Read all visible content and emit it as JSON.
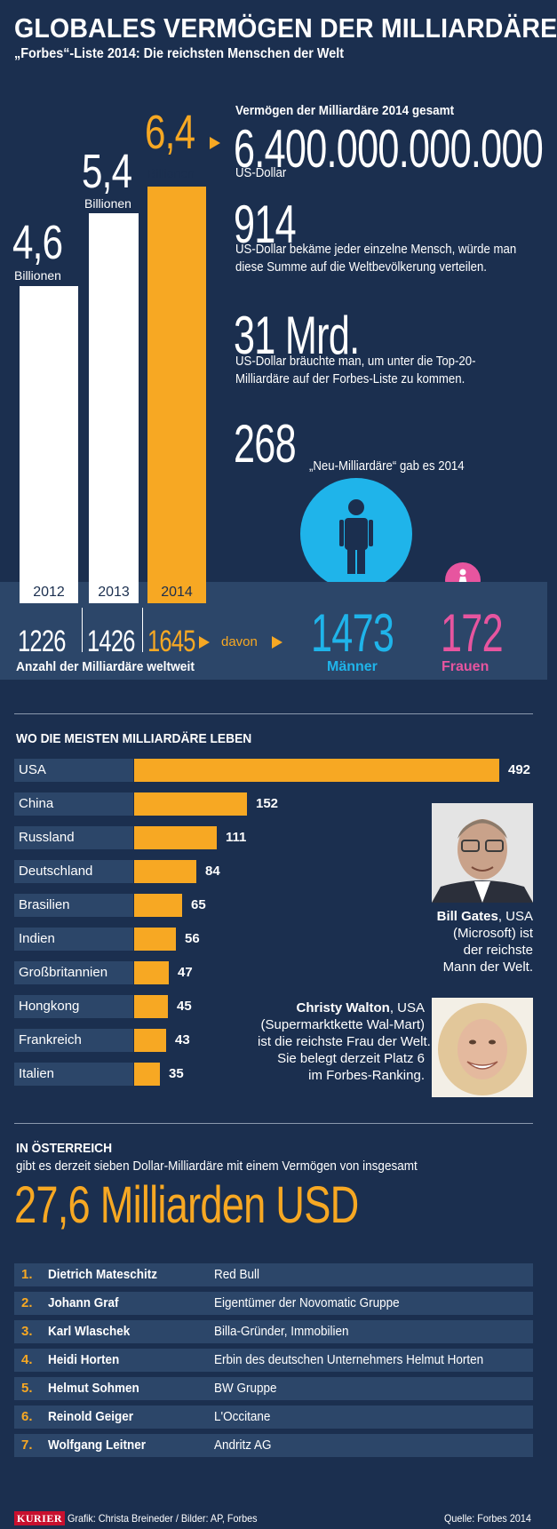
{
  "header": {
    "title": "GLOBALES VERMÖGEN DER MILLIARDÄRE",
    "subtitle": "„Forbes“-Liste 2014: Die reichsten Menschen der Welt"
  },
  "colors": {
    "background": "#1b2f4f",
    "accent": "#f7a823",
    "men": "#1fb4ea",
    "women": "#e7559f",
    "row": "#2c4669"
  },
  "wealth_chart": {
    "bars": [
      {
        "year": "2012",
        "value": "4,6",
        "unit": "Billionen",
        "count": "1226"
      },
      {
        "year": "2013",
        "value": "5,4",
        "unit": "Billionen",
        "count": "1426"
      },
      {
        "year": "2014",
        "value": "6,4",
        "unit": "Billionen",
        "count": "1645"
      }
    ],
    "count_label": "Anzahl der Milliardäre weltweit",
    "davon": "davon"
  },
  "stats": {
    "total_head": "Vermögen der Milliardäre 2014 gesamt",
    "total_num": "6.400.000.000.000",
    "total_unit": "US-Dollar",
    "per_person_num": "914",
    "per_person_text1": "US-Dollar bekäme jeder einzelne Mensch, würde man",
    "per_person_text2": "diese Summe auf die Weltbevölkerung verteilen.",
    "top20_num": "31 Mrd.",
    "top20_text1": "US-Dollar bräuchte man, um unter die Top-20-",
    "top20_text2": "Milliardäre auf der Forbes-Liste zu kommen.",
    "new_num": "268",
    "new_text": "„Neu-Milliardäre“ gab es 2014"
  },
  "gender": {
    "men_count": "1473",
    "men_label": "Männer",
    "women_count": "172",
    "women_label": "Frauen"
  },
  "countries": {
    "title": "WO DIE MEISTEN MILLIARDÄRE LEBEN"
  },
  "chart_data": {
    "type": "bar",
    "orientation": "horizontal",
    "title": "WO DIE MEISTEN MILLIARDÄRE LEBEN",
    "categories": [
      "USA",
      "China",
      "Russland",
      "Deutschland",
      "Brasilien",
      "Indien",
      "Großbritannien",
      "Hongkong",
      "Frankreich",
      "Italien"
    ],
    "values": [
      492,
      152,
      111,
      84,
      65,
      56,
      47,
      45,
      43,
      35
    ],
    "value_labels": [
      "492",
      "152",
      "111",
      "84",
      "65",
      "56",
      "47",
      "45",
      "43",
      "35"
    ],
    "xlim": [
      0,
      492
    ],
    "bar_color": "#f7a823"
  },
  "people": {
    "gates_name": "Bill Gates",
    "gates_text1": ", USA",
    "gates_text2": "(Microsoft) ist",
    "gates_text3": "der reichste",
    "gates_text4": "Mann der Welt.",
    "walton_name": "Christy Walton",
    "walton_text1": ", USA",
    "walton_text2": "(Supermarktkette Wal-Mart)",
    "walton_text3": "ist die reichste Frau der Welt.",
    "walton_text4": "Sie belegt derzeit Platz 6",
    "walton_text5": "im Forbes-Ranking."
  },
  "austria": {
    "title": "IN ÖSTERREICH",
    "text": "gibt es derzeit sieben Dollar-Milliardäre mit einem Vermögen von insgesamt",
    "total": "27,6 Milliarden USD",
    "ranks": [
      {
        "rank": "1.",
        "name": "Dietrich Mateschitz",
        "desc": "Red Bull"
      },
      {
        "rank": "2.",
        "name": "Johann Graf",
        "desc": "Eigentümer der Novomatic Gruppe"
      },
      {
        "rank": "3.",
        "name": "Karl Wlaschek",
        "desc": "Billa-Gründer, Immobilien"
      },
      {
        "rank": "4.",
        "name": "Heidi Horten",
        "desc": "Erbin des deutschen Unternehmers Helmut Horten"
      },
      {
        "rank": "5.",
        "name": "Helmut Sohmen",
        "desc": "BW Gruppe"
      },
      {
        "rank": "6.",
        "name": "Reinold Geiger",
        "desc": "L'Occitane"
      },
      {
        "rank": "7.",
        "name": "Wolfgang Leitner",
        "desc": "Andritz AG"
      }
    ]
  },
  "footer": {
    "logo": "KURIER",
    "credit": "Grafik: Christa Breineder / Bilder: AP, Forbes",
    "source": "Quelle: Forbes 2014"
  }
}
